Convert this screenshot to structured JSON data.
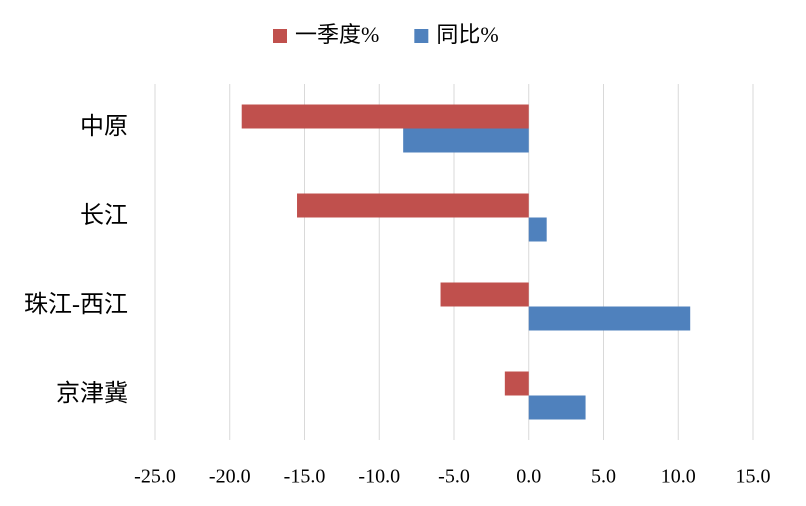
{
  "chart_data": {
    "type": "hbar",
    "categories": [
      "中原",
      "长江",
      "珠江-西江",
      "京津冀"
    ],
    "series": [
      {
        "name": "一季度%",
        "color": "#c0504d",
        "values": [
          -19.2,
          -15.5,
          -5.9,
          -1.6
        ]
      },
      {
        "name": "同比%",
        "color": "#4f81bd",
        "values": [
          -8.4,
          1.2,
          10.8,
          3.8
        ]
      }
    ],
    "xlim": [
      -25,
      15
    ],
    "xticks": [
      {
        "value": -25,
        "label": "-25.0"
      },
      {
        "value": -20,
        "label": "-20.0"
      },
      {
        "value": -15,
        "label": "-15.0"
      },
      {
        "value": -10,
        "label": "-10.0"
      },
      {
        "value": -5,
        "label": "-5.0"
      },
      {
        "value": 0,
        "label": "0.0"
      },
      {
        "value": 5,
        "label": "5.0"
      },
      {
        "value": 10,
        "label": "10.0"
      },
      {
        "value": 15,
        "label": "15.0"
      }
    ],
    "grid": true,
    "legend": "top"
  }
}
